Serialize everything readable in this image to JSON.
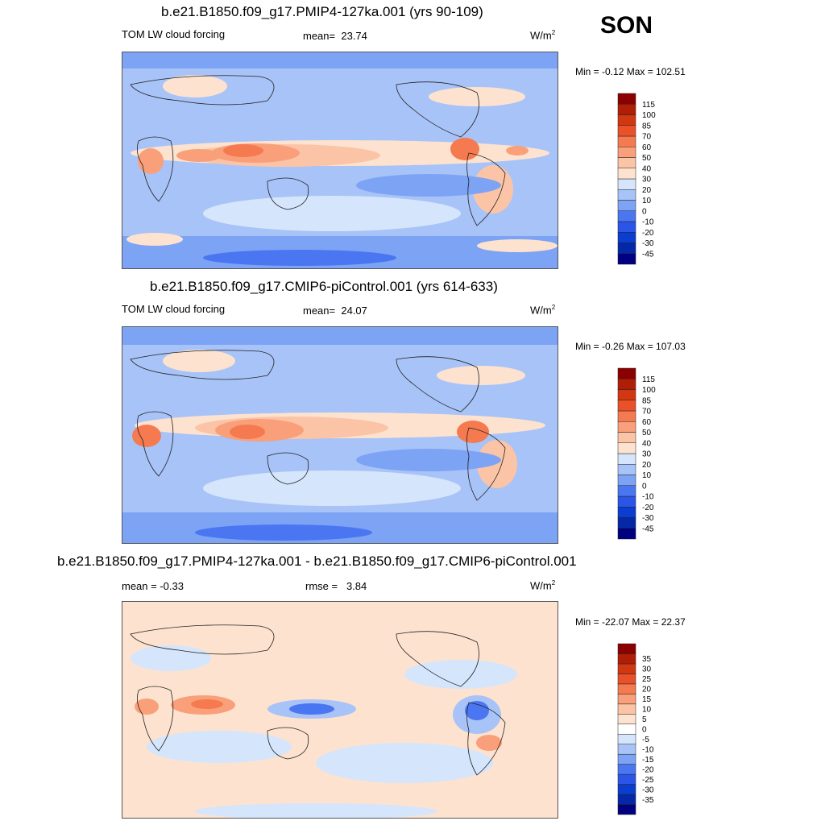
{
  "season": "SON",
  "panels": [
    {
      "title": "b.e21.B1850.f09_g17.PMIP4-127ka.001 (yrs 90-109)",
      "left": "TOM LW cloud forcing",
      "mean_label": "mean=",
      "mean": "23.74",
      "units": "W/m",
      "units_sup": "2",
      "minmax": "Min =  -0.12 Max = 102.51",
      "colorbar": {
        "colors": [
          "#000080",
          "#0528a8",
          "#0a3dd0",
          "#2a55e6",
          "#4a76f2",
          "#7da3f5",
          "#a8c3f7",
          "#d5e5fb",
          "#fde3cf",
          "#fcc4a6",
          "#f9a07a",
          "#f57a4f",
          "#ea5128",
          "#d13710",
          "#b01f05",
          "#8b0000"
        ],
        "labels": [
          "-45",
          "-30",
          "-20",
          "-10",
          "0",
          "10",
          "20",
          "30",
          "40",
          "50",
          "60",
          "70",
          "85",
          "100",
          "115"
        ]
      }
    },
    {
      "title": "b.e21.B1850.f09_g17.CMIP6-piControl.001 (yrs 614-633)",
      "left": "TOM LW cloud forcing",
      "mean_label": "mean=",
      "mean": "24.07",
      "units": "W/m",
      "units_sup": "2",
      "minmax": "Min =  -0.26 Max = 107.03",
      "colorbar": {
        "colors": [
          "#000080",
          "#0528a8",
          "#0a3dd0",
          "#2a55e6",
          "#4a76f2",
          "#7da3f5",
          "#a8c3f7",
          "#d5e5fb",
          "#fde3cf",
          "#fcc4a6",
          "#f9a07a",
          "#f57a4f",
          "#ea5128",
          "#d13710",
          "#b01f05",
          "#8b0000"
        ],
        "labels": [
          "-45",
          "-30",
          "-20",
          "-10",
          "0",
          "10",
          "20",
          "30",
          "40",
          "50",
          "60",
          "70",
          "85",
          "100",
          "115"
        ]
      }
    },
    {
      "title": "b.e21.B1850.f09_g17.PMIP4-127ka.001 - b.e21.B1850.f09_g17.CMIP6-piControl.001",
      "left": "mean =  -0.33",
      "mean_label": "rmse =",
      "mean": "3.84",
      "units": "W/m",
      "units_sup": "2",
      "minmax": "Min = -22.07 Max =  22.37",
      "colorbar": {
        "colors": [
          "#000080",
          "#0528a8",
          "#0a3dd0",
          "#2a55e6",
          "#4a76f2",
          "#7da3f5",
          "#a8c3f7",
          "#d5e5fb",
          "#ffffff",
          "#fde3cf",
          "#fcc4a6",
          "#f9a07a",
          "#f57a4f",
          "#ea5128",
          "#d13710",
          "#b01f05",
          "#8b0000"
        ],
        "labels": [
          "-35",
          "-30",
          "-25",
          "-20",
          "-15",
          "-10",
          "-5",
          "0",
          "5",
          "10",
          "15",
          "20",
          "25",
          "30",
          "35"
        ]
      }
    }
  ]
}
